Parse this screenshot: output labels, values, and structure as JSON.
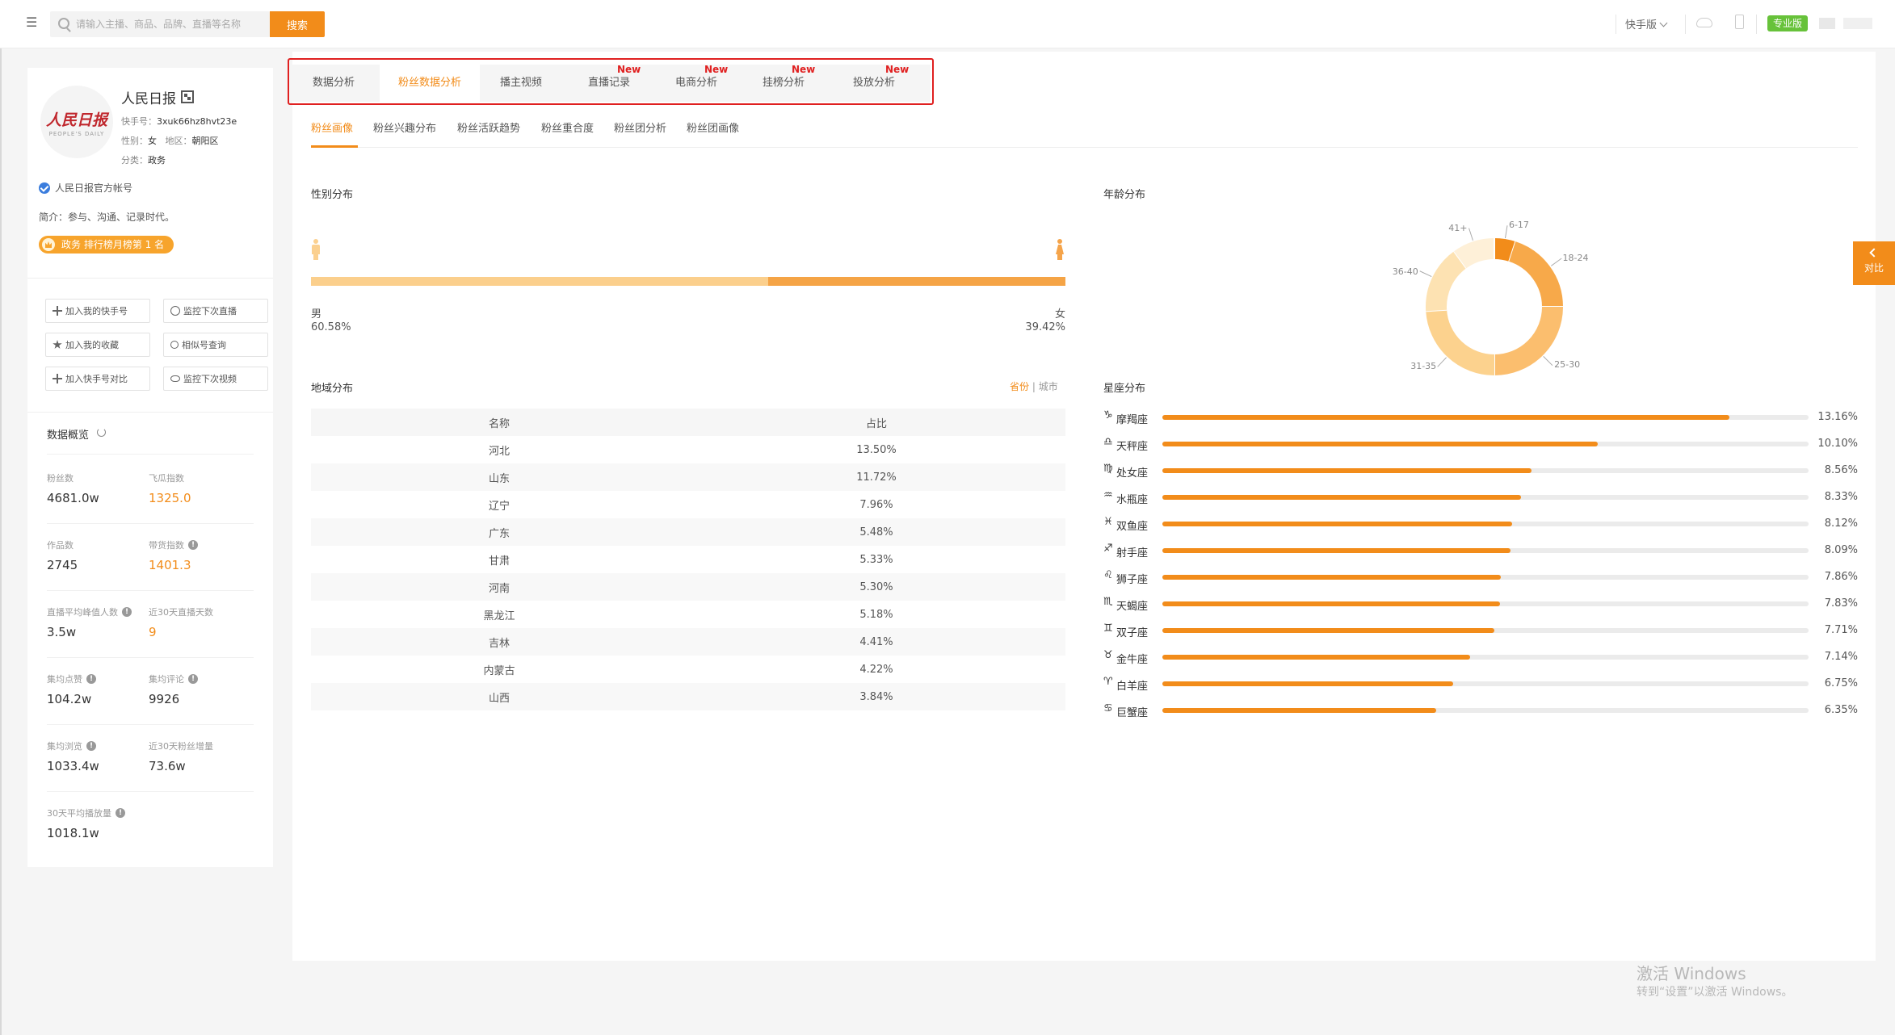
{
  "topbar": {
    "menu_icon": "menu-icon",
    "search_placeholder": "请输入主播、商品、品牌、直播等名称",
    "search_button": "搜索",
    "platform": "快手版",
    "pro_badge": "专业版",
    "pro_color": "#67c23a"
  },
  "profile": {
    "logo_text": "人民日报",
    "logo_sub": "PEOPLE'S DAILY",
    "name": "人民日报",
    "account_label": "快手号：",
    "account_id": "3xuk66hz8hvt23e",
    "gender_label": "性别：",
    "gender": "女",
    "region_label": "地区：",
    "region": "朝阳区",
    "category_label": "分类：",
    "category": "政务",
    "verified": "人民日报官方帐号",
    "intro": "简介：参与、沟通、记录时代。",
    "rank_badge": "政务 排行榜月榜第 1 名",
    "actions": [
      {
        "label": "加入我的快手号",
        "icon": "plus-icon"
      },
      {
        "label": "监控下次直播",
        "icon": "live-monitor-icon"
      },
      {
        "label": "加入我的收藏",
        "icon": "star-icon"
      },
      {
        "label": "相似号查询",
        "icon": "search-icon"
      },
      {
        "label": "加入快手号对比",
        "icon": "plus-icon"
      },
      {
        "label": "监控下次视频",
        "icon": "eye-icon"
      }
    ],
    "overview_title": "数据概览",
    "stats": [
      {
        "label": "粉丝数",
        "value": "4681.0w",
        "info": false,
        "highlight": false
      },
      {
        "label": "飞瓜指数",
        "value": "1325.0",
        "info": false,
        "highlight": true
      },
      {
        "label": "作品数",
        "value": "2745",
        "info": false,
        "highlight": false
      },
      {
        "label": "带货指数",
        "value": "1401.3",
        "info": true,
        "highlight": true
      },
      {
        "label": "直播平均峰值人数",
        "value": "3.5w",
        "info": true,
        "highlight": false
      },
      {
        "label": "近30天直播天数",
        "value": "9",
        "info": false,
        "highlight": true
      },
      {
        "label": "集均点赞",
        "value": "104.2w",
        "info": true,
        "highlight": false
      },
      {
        "label": "集均评论",
        "value": "9926",
        "info": true,
        "highlight": false
      },
      {
        "label": "集均浏览",
        "value": "1033.4w",
        "info": true,
        "highlight": false
      },
      {
        "label": "近30天粉丝增量",
        "value": "73.6w",
        "info": false,
        "highlight": false
      },
      {
        "label": "30天平均播放量",
        "value": "1018.1w",
        "info": true,
        "highlight": false
      }
    ]
  },
  "tabs": [
    {
      "label": "数据分析",
      "new": ""
    },
    {
      "label": "粉丝数据分析",
      "new": ""
    },
    {
      "label": "播主视频",
      "new": ""
    },
    {
      "label": "直播记录",
      "new": "New"
    },
    {
      "label": "电商分析",
      "new": "New"
    },
    {
      "label": "挂榜分析",
      "new": "New"
    },
    {
      "label": "投放分析",
      "new": "New"
    }
  ],
  "subtabs": [
    "粉丝画像",
    "粉丝兴趣分布",
    "粉丝活跃趋势",
    "粉丝重合度",
    "粉丝团分析",
    "粉丝团画像"
  ],
  "gender": {
    "title": "性别分布",
    "male_label": "男",
    "male_pct": "60.58%",
    "male_value": 60.58,
    "female_label": "女",
    "female_pct": "39.42%",
    "female_value": 39.42
  },
  "region": {
    "title": "地域分布",
    "toggle_province": "省份",
    "toggle_sep": "|",
    "toggle_city": "城市",
    "col_name": "名称",
    "col_pct": "占比",
    "rows": [
      {
        "name": "河北",
        "pct": "13.50%"
      },
      {
        "name": "山东",
        "pct": "11.72%"
      },
      {
        "name": "辽宁",
        "pct": "7.96%"
      },
      {
        "name": "广东",
        "pct": "5.48%"
      },
      {
        "name": "甘肃",
        "pct": "5.33%"
      },
      {
        "name": "河南",
        "pct": "5.30%"
      },
      {
        "name": "黑龙江",
        "pct": "5.18%"
      },
      {
        "name": "吉林",
        "pct": "4.41%"
      },
      {
        "name": "内蒙古",
        "pct": "4.22%"
      },
      {
        "name": "山西",
        "pct": "3.84%"
      }
    ]
  },
  "age": {
    "title": "年龄分布",
    "segments": [
      {
        "label": "6-17",
        "value": 5,
        "color": "#f28c1a"
      },
      {
        "label": "18-24",
        "value": 20,
        "color": "#f7a94a"
      },
      {
        "label": "25-30",
        "value": 25,
        "color": "#fbbe6e"
      },
      {
        "label": "31-35",
        "value": 24,
        "color": "#fcd28e"
      },
      {
        "label": "36-40",
        "value": 16,
        "color": "#fde2b2"
      },
      {
        "label": "41+",
        "value": 10,
        "color": "#fef0d8"
      }
    ]
  },
  "constellation": {
    "title": "星座分布",
    "items": [
      {
        "symbol": "♑",
        "name": "摩羯座",
        "pct": "13.16%",
        "value": 13.16
      },
      {
        "symbol": "♎",
        "name": "天秤座",
        "pct": "10.10%",
        "value": 10.1
      },
      {
        "symbol": "♍",
        "name": "处女座",
        "pct": "8.56%",
        "value": 8.56
      },
      {
        "symbol": "♒",
        "name": "水瓶座",
        "pct": "8.33%",
        "value": 8.33
      },
      {
        "symbol": "♓",
        "name": "双鱼座",
        "pct": "8.12%",
        "value": 8.12
      },
      {
        "symbol": "♐",
        "name": "射手座",
        "pct": "8.09%",
        "value": 8.09
      },
      {
        "symbol": "♌",
        "name": "狮子座",
        "pct": "7.86%",
        "value": 7.86
      },
      {
        "symbol": "♏",
        "name": "天蝎座",
        "pct": "7.83%",
        "value": 7.83
      },
      {
        "symbol": "♊",
        "name": "双子座",
        "pct": "7.71%",
        "value": 7.71
      },
      {
        "symbol": "♉",
        "name": "金牛座",
        "pct": "7.14%",
        "value": 7.14
      },
      {
        "symbol": "♈",
        "name": "白羊座",
        "pct": "6.75%",
        "value": 6.75
      },
      {
        "symbol": "♋",
        "name": "巨蟹座",
        "pct": "6.35%",
        "value": 6.35
      }
    ],
    "bar_color": "#f28c1a"
  },
  "compare_tab": "对比",
  "watermark": {
    "line1": "激活 Windows",
    "line2": "转到“设置”以激活 Windows。"
  },
  "accent_color": "#f28c1a"
}
